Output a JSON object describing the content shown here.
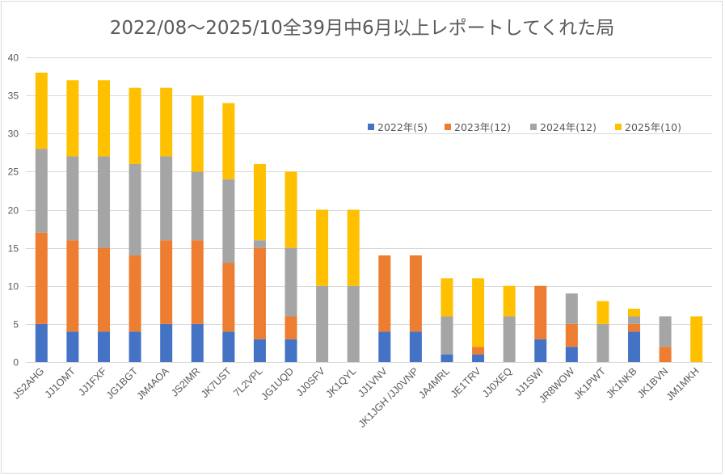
{
  "chart_data": {
    "type": "bar",
    "stacked": true,
    "title": "2022/08〜2025/10全39月中6月以上レポートしてくれた局",
    "xlabel": "",
    "ylabel": "",
    "ylim": [
      0,
      40
    ],
    "yticks": [
      0,
      5,
      10,
      15,
      20,
      25,
      30,
      35,
      40
    ],
    "ytick_labels": [
      "0",
      "5",
      "10",
      "15",
      "20",
      "25",
      "30",
      "35",
      "40"
    ],
    "grid": true,
    "legend_position": "top-right (inside plot)",
    "categories": [
      "JS2AHG",
      "JJ1OMT",
      "JJ1FXF",
      "JG1BGT",
      "JM4AOA",
      "JS2IMR",
      "JK7UST",
      "7L2VPL",
      "JG1UQD",
      "JJ0SFV",
      "JK1QYL",
      "JJ1VNV",
      "JK1JGH /JJ0VNP",
      "JA4MRL",
      "JE1TRV",
      "JJ0XEQ",
      "JJ1SWI",
      "JR8WOW",
      "JK1PWT",
      "JK1NKB",
      "JK1BVN",
      "JM1MKH"
    ],
    "series": [
      {
        "name": "2022年(5)",
        "color": "#4472c4",
        "values": [
          5,
          4,
          4,
          4,
          5,
          5,
          4,
          3,
          3,
          0,
          0,
          4,
          4,
          1,
          1,
          0,
          3,
          2,
          0,
          4,
          0,
          0
        ]
      },
      {
        "name": "2023年(12)",
        "color": "#ed7d31",
        "values": [
          12,
          12,
          11,
          10,
          11,
          11,
          9,
          12,
          3,
          0,
          0,
          10,
          10,
          0,
          1,
          0,
          7,
          3,
          0,
          1,
          2,
          0
        ]
      },
      {
        "name": "2024年(12)",
        "color": "#a5a5a5",
        "values": [
          11,
          11,
          12,
          12,
          11,
          9,
          11,
          1,
          9,
          10,
          10,
          0,
          0,
          5,
          0,
          6,
          0,
          4,
          5,
          1,
          4,
          0
        ]
      },
      {
        "name": "2025年(10)",
        "color": "#ffc000",
        "values": [
          10,
          10,
          10,
          10,
          9,
          10,
          10,
          10,
          10,
          10,
          10,
          0,
          0,
          5,
          9,
          4,
          0,
          0,
          3,
          1,
          0,
          6
        ]
      }
    ]
  }
}
